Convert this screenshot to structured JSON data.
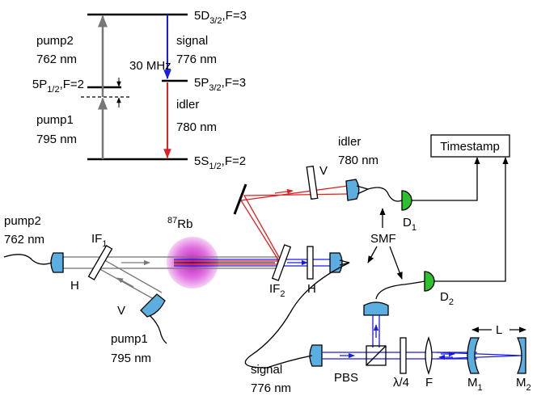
{
  "level_diagram": {
    "levels": [
      {
        "name": "5D",
        "sub": "3/2",
        "suffix": ",F=3"
      },
      {
        "name": "5P",
        "sub": "3/2",
        "suffix": ",F=3"
      },
      {
        "name": "5P",
        "sub": "1/2",
        "suffix": ",F=2"
      },
      {
        "name": "5S",
        "sub": "1/2",
        "suffix": ",F=2"
      }
    ],
    "transitions": [
      {
        "label": "pump2",
        "wavelength": "762 nm"
      },
      {
        "label": "pump1",
        "wavelength": "795 nm"
      },
      {
        "label": "signal",
        "wavelength": "776 nm"
      },
      {
        "label": "idler",
        "wavelength": "780 nm"
      }
    ],
    "detuning": "30 MHz"
  },
  "setup": {
    "idler": {
      "label": "idler",
      "wavelength": "780 nm"
    },
    "timestamp": "Timestamp",
    "idler_waveplate": "V",
    "detectors": [
      {
        "name": "D",
        "sub": "1"
      },
      {
        "name": "D",
        "sub": "2"
      }
    ],
    "fiber": "SMF",
    "pump2": {
      "label": "pump2",
      "wavelength": "762 nm"
    },
    "pump1": {
      "label": "pump1",
      "wavelength": "795 nm"
    },
    "filters": [
      {
        "name": "IF",
        "sub": "1"
      },
      {
        "name": "IF",
        "sub": "2"
      }
    ],
    "atoms": {
      "sup": "87",
      "name": "Rb"
    },
    "pump2_polarization": "H",
    "pump1_polarization": "V",
    "signal_polarization": "H",
    "signal": {
      "label": "signal",
      "wavelength": "776 nm"
    },
    "pbs": "PBS",
    "quarter_wave": "λ/4",
    "lens": "F",
    "mirrors": [
      {
        "name": "M",
        "sub": "1"
      },
      {
        "name": "M",
        "sub": "2"
      }
    ],
    "cavity_length": "L"
  }
}
